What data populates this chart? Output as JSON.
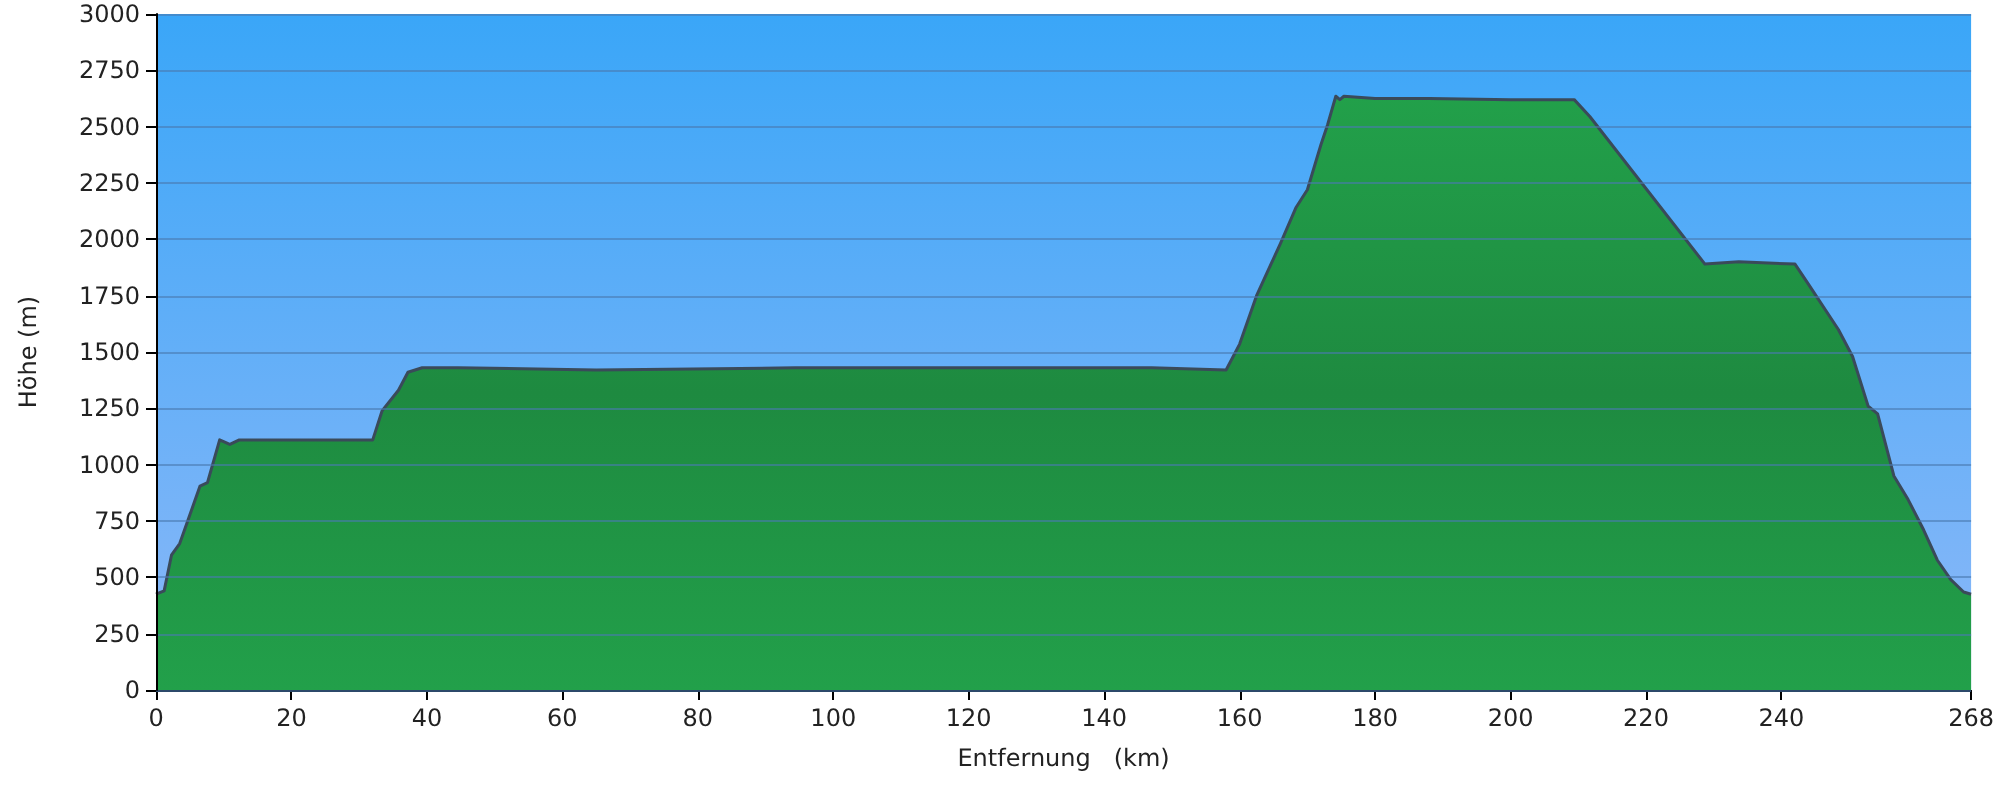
{
  "chart_data": {
    "type": "area",
    "xlabel": "Entfernung   (km)",
    "ylabel": "Höhe (m)",
    "xlim": [
      0,
      268
    ],
    "xticks": [
      0,
      20,
      40,
      60,
      80,
      100,
      120,
      140,
      160,
      180,
      200,
      220,
      240,
      268
    ],
    "ylim": [
      0,
      3000
    ],
    "yticks": [
      0,
      250,
      500,
      750,
      1000,
      1250,
      1500,
      1750,
      2000,
      2250,
      2500,
      2750,
      3000
    ],
    "grid": "y",
    "marker": "none",
    "line_style": "solid",
    "series": [
      {
        "color": "#22a04a",
        "x": [
          0,
          1.2,
          2.3,
          3.5,
          6.5,
          7.6,
          9.4,
          10.9,
          12.3,
          21,
          32,
          33.4,
          35.8,
          37.2,
          39.3,
          44.6,
          65,
          94.4,
          124,
          147,
          158,
          160,
          162.5,
          166,
          168.3,
          170,
          172,
          173,
          174.2,
          174.8,
          175.4,
          180,
          188,
          200,
          209.4,
          211.7,
          228.7,
          233.7,
          242,
          244,
          248.4,
          250.5,
          252.8,
          254.2,
          256.6,
          258.7,
          261,
          263,
          265,
          266.9,
          268
        ],
        "values": [
          425,
          440,
          600,
          650,
          905,
          920,
          1110,
          1090,
          1110,
          1110,
          1110,
          1240,
          1330,
          1410,
          1430,
          1430,
          1420,
          1430,
          1430,
          1430,
          1420,
          1535,
          1750,
          1980,
          2140,
          2220,
          2420,
          2510,
          2635,
          2620,
          2635,
          2625,
          2625,
          2620,
          2620,
          2545,
          1890,
          1900,
          1890,
          1800,
          1600,
          1480,
          1260,
          1225,
          950,
          845,
          710,
          577,
          490,
          435,
          425
        ]
      }
    ]
  }
}
